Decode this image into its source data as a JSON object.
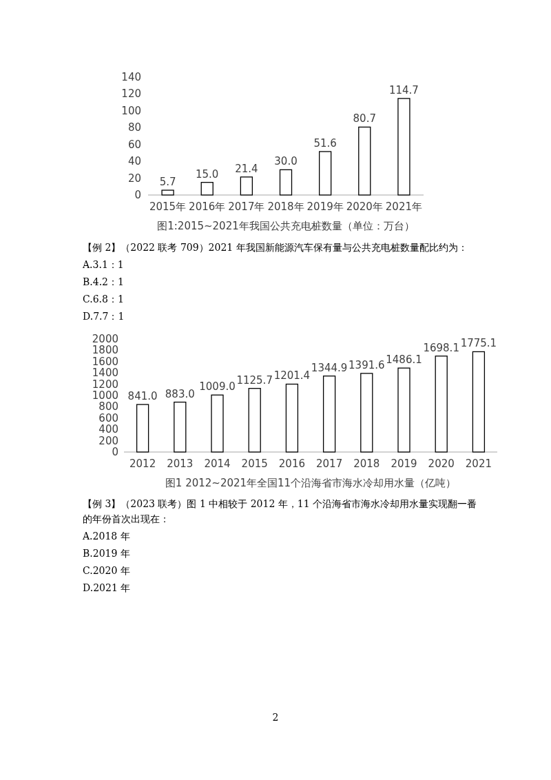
{
  "chart_data": [
    {
      "type": "bar",
      "title": "图1:2015~2021年我国公共充电桩数量（单位：万台）",
      "categories": [
        "2015年",
        "2016年",
        "2017年",
        "2018年",
        "2019年",
        "2020年",
        "2021年"
      ],
      "values": [
        5.7,
        15.0,
        21.4,
        30.0,
        51.6,
        80.7,
        114.7
      ],
      "value_labels": [
        "5.7",
        "15.0",
        "21.4",
        "30.0",
        "51.6",
        "80.7",
        "114.7"
      ],
      "color": "#ffffff",
      "ylim": [
        0,
        140
      ],
      "yticks": [
        0,
        20,
        40,
        60,
        80,
        100,
        120,
        140
      ],
      "grid": false,
      "annotations": [
        "【例 2】（2022 联考 709）2021 年我国新能源汽车保有量与公共充电桩数量配比约为：",
        "A.3.1：1",
        "B.4.2：1",
        "C.6.8：1",
        "D.7.7：1"
      ]
    },
    {
      "type": "bar",
      "title": "图1  2012~2021年全国11个沿海省市海水冷却用水量（亿吨）",
      "categories": [
        "2012",
        "2013",
        "2014",
        "2015",
        "2016",
        "2017",
        "2018",
        "2019",
        "2020",
        "2021"
      ],
      "values": [
        841.0,
        883.0,
        1009.0,
        1125.7,
        1201.4,
        1344.9,
        1391.6,
        1486.1,
        1698.1,
        1775.1
      ],
      "value_labels": [
        "841.0",
        "883.0",
        "1009.0",
        "1125.7",
        "1201.4",
        "1344.9",
        "1391.6",
        "1486.1",
        "1698.1",
        "1775.1"
      ],
      "color": "#ffffff",
      "ylim": [
        0,
        2000
      ],
      "yticks": [
        0,
        200,
        400,
        600,
        800,
        1000,
        1200,
        1400,
        1600,
        1800,
        2000
      ],
      "grid": false,
      "annotations": [
        "【例 3】（2023 联考）图 1 中相较于 2012 年，11 个沿海省市海水冷却用水量实现翻一番的年份首次出现在：",
        "A.2018 年",
        "B.2019 年",
        "C.2020 年",
        "D.2021 年",
        "2"
      ]
    }
  ]
}
